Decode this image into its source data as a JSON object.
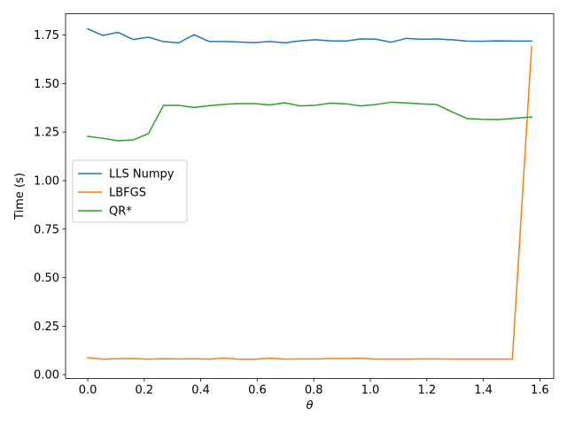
{
  "chart_data": {
    "type": "line",
    "xlabel": "θ",
    "ylabel": "Time (s)",
    "xlim": [
      -0.0785,
      1.649
    ],
    "ylim": [
      -0.02,
      1.86
    ],
    "xticks": [
      0.0,
      0.2,
      0.4,
      0.6,
      0.8,
      1.0,
      1.2,
      1.4,
      1.6
    ],
    "xtick_labels": [
      "0.0",
      "0.2",
      "0.4",
      "0.6",
      "0.8",
      "1.0",
      "1.2",
      "1.4",
      "1.6"
    ],
    "yticks": [
      0.0,
      0.25,
      0.5,
      0.75,
      1.0,
      1.25,
      1.5,
      1.75
    ],
    "ytick_labels": [
      "0.00",
      "0.25",
      "0.50",
      "0.75",
      "1.00",
      "1.25",
      "1.50",
      "1.75"
    ],
    "legend_position": "center-left",
    "x": [
      0.0,
      0.0537,
      0.1073,
      0.161,
      0.2147,
      0.2683,
      0.322,
      0.3757,
      0.4293,
      0.483,
      0.5367,
      0.5903,
      0.644,
      0.6977,
      0.7513,
      0.805,
      0.8587,
      0.9123,
      0.966,
      1.0197,
      1.0733,
      1.127,
      1.1807,
      1.2343,
      1.288,
      1.3417,
      1.3953,
      1.449,
      1.5027,
      1.5708
    ],
    "series": [
      {
        "name": "LLS Numpy",
        "color": "#1f77b4",
        "values": [
          1.782,
          1.748,
          1.764,
          1.727,
          1.739,
          1.716,
          1.71,
          1.752,
          1.717,
          1.717,
          1.714,
          1.711,
          1.717,
          1.71,
          1.72,
          1.726,
          1.72,
          1.719,
          1.73,
          1.729,
          1.713,
          1.733,
          1.728,
          1.73,
          1.726,
          1.719,
          1.718,
          1.72,
          1.719,
          1.719
        ]
      },
      {
        "name": "LBFGS",
        "color": "#ff7f0e",
        "values": [
          0.088,
          0.08,
          0.082,
          0.083,
          0.08,
          0.082,
          0.081,
          0.082,
          0.08,
          0.086,
          0.079,
          0.079,
          0.085,
          0.08,
          0.081,
          0.081,
          0.083,
          0.083,
          0.085,
          0.08,
          0.08,
          0.08,
          0.081,
          0.081,
          0.08,
          0.08,
          0.08,
          0.08,
          0.08,
          1.69
        ]
      },
      {
        "name": "QR*",
        "color": "#2ca02c",
        "values": [
          1.228,
          1.218,
          1.205,
          1.21,
          1.242,
          1.388,
          1.388,
          1.377,
          1.386,
          1.393,
          1.397,
          1.397,
          1.39,
          1.401,
          1.385,
          1.388,
          1.399,
          1.396,
          1.385,
          1.392,
          1.404,
          1.4,
          1.395,
          1.392,
          1.355,
          1.32,
          1.316,
          1.314,
          1.32,
          1.328
        ]
      }
    ]
  }
}
